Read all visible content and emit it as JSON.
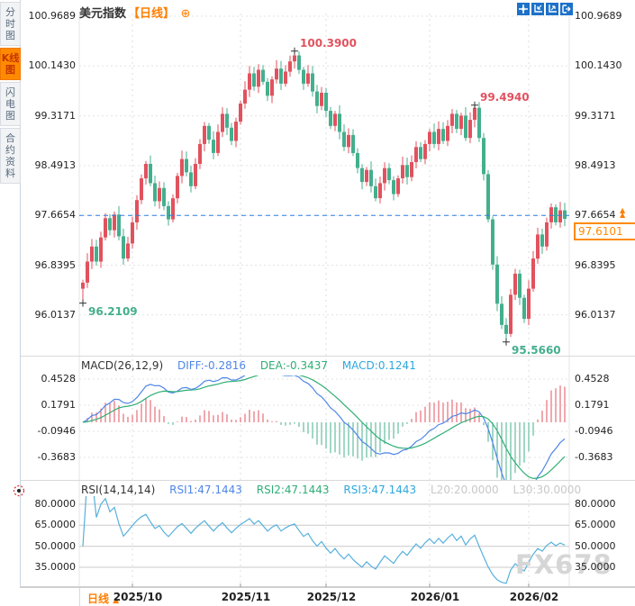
{
  "sidebar": {
    "tabs": [
      {
        "label": "分时图",
        "active": false
      },
      {
        "label": "K线图",
        "active": true
      },
      {
        "label": "闪电图",
        "active": false
      },
      {
        "label": "合约资料",
        "active": false
      }
    ]
  },
  "header": {
    "title": "美元指数",
    "timeframe_tag": "【日线】",
    "plus_icon": "⊕",
    "toolbar_icons": [
      "crosshair",
      "zoom-out",
      "zoom-in",
      "pan-right"
    ]
  },
  "price_axis": {
    "labels": [
      "100.9689",
      "100.1430",
      "99.3171",
      "98.4913",
      "97.6654",
      "96.8395",
      "96.0137"
    ]
  },
  "last_price": {
    "line_value": "97.6654",
    "boxed_value": "97.6101",
    "arrows": "▲"
  },
  "macd_panel": {
    "title": "MACD(26,12,9)",
    "diff_label": "DIFF:-0.2816",
    "dea_label": "DEA:-0.3437",
    "macd_label": "MACD:0.1241",
    "axis_labels": [
      "0.4528",
      "0.1791",
      "-0.0946",
      "-0.3683"
    ]
  },
  "rsi_panel": {
    "title": "RSI(14,14,14)",
    "rsi1_label": "RSI1:47.1443",
    "rsi2_label": "RSI2:47.1443",
    "rsi3_label": "RSI3:47.1443",
    "l20_label": "L20:20.0000",
    "l30_label": "L30:30.0000",
    "axis_labels": [
      "80.0000",
      "65.0000",
      "50.0000",
      "35.0000"
    ]
  },
  "bottom_bar": {
    "timeframe": "日线",
    "arrow": "▲"
  },
  "watermark": "FX678",
  "colors": {
    "accent_orange": "#ff7e00",
    "up_red": "#e1525e",
    "down_green": "#44af8d",
    "diff_blue": "#4f86e8",
    "dea_green": "#2fae76",
    "macd_cyan": "#2da8dd",
    "rsi_line": "#57b0dd",
    "last_price_line": "#2b7fe0",
    "grid": "#e3e3e3",
    "toolbar_blue": "#1d71c8"
  },
  "chart_data": {
    "type": "candlestick",
    "symbol": "美元指数",
    "interval": "日线",
    "y_axis": [
      100.9689,
      100.143,
      99.3171,
      98.4913,
      97.6654,
      96.8395,
      96.0137
    ],
    "x_labels": [
      "2025/10",
      "2025/11",
      "2025/12",
      "2026/01",
      "2026/02"
    ],
    "month_start_indices": [
      11,
      35,
      54,
      77,
      99
    ],
    "first_open": 96.45,
    "closes": [
      96.55,
      96.9,
      97.15,
      96.9,
      97.3,
      97.62,
      97.42,
      97.68,
      97.32,
      96.95,
      97.2,
      97.55,
      97.92,
      98.28,
      98.52,
      98.2,
      97.9,
      98.12,
      97.82,
      97.6,
      97.95,
      98.32,
      98.6,
      98.38,
      98.15,
      98.52,
      98.85,
      99.15,
      98.92,
      98.7,
      99.05,
      99.35,
      99.12,
      98.9,
      99.22,
      99.52,
      99.75,
      100.02,
      99.8,
      100.08,
      99.88,
      99.65,
      99.92,
      100.1,
      99.85,
      100.05,
      100.22,
      100.32,
      100.08,
      99.85,
      100.02,
      99.72,
      99.48,
      99.7,
      99.4,
      99.15,
      99.35,
      99.05,
      98.8,
      99.0,
      98.7,
      98.45,
      98.22,
      98.42,
      98.15,
      97.95,
      98.2,
      98.45,
      98.25,
      98.02,
      98.28,
      98.5,
      98.3,
      98.55,
      98.8,
      98.6,
      98.85,
      99.05,
      98.85,
      99.1,
      98.9,
      99.15,
      99.35,
      99.1,
      99.32,
      98.95,
      99.25,
      99.45,
      98.95,
      98.35,
      97.6,
      96.85,
      96.2,
      95.85,
      95.7,
      96.35,
      96.7,
      96.3,
      95.95,
      96.45,
      96.95,
      97.35,
      97.15,
      97.55,
      97.8,
      97.55,
      97.75,
      97.61
    ],
    "wick_overrides": {
      "0": {
        "low": 96.2109
      },
      "47": {
        "high": 100.39
      },
      "87": {
        "high": 99.494
      },
      "94": {
        "low": 95.566
      }
    },
    "annotations": [
      {
        "index": 47,
        "value": 100.39,
        "text": "100.3900",
        "kind": "high"
      },
      {
        "index": 87,
        "value": 99.494,
        "text": "99.4940",
        "kind": "high"
      },
      {
        "index": 0,
        "value": 96.2109,
        "text": "96.2109",
        "kind": "low"
      },
      {
        "index": 94,
        "value": 95.566,
        "text": "95.5660",
        "kind": "low"
      }
    ],
    "last_price_line": 97.6654,
    "macd": {
      "params": [
        26,
        12,
        9
      ],
      "diff": -0.2816,
      "dea": -0.3437,
      "macd": 0.1241,
      "y_axis": [
        0.4528,
        0.1791,
        -0.0946,
        -0.3683
      ]
    },
    "rsi": {
      "params": [
        14,
        14,
        14
      ],
      "rsi1": 47.1443,
      "rsi2": 47.1443,
      "rsi3": 47.1443,
      "l20": 20.0,
      "l30": 30.0,
      "y_axis": [
        80.0,
        65.0,
        50.0,
        35.0
      ]
    }
  }
}
